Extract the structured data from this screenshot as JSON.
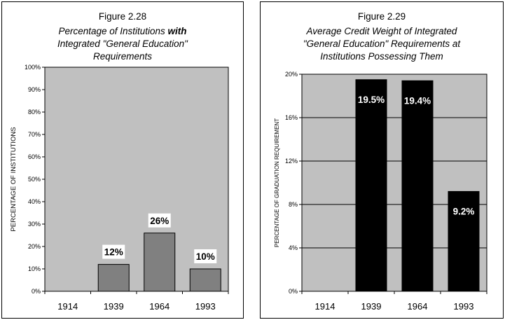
{
  "charts": [
    {
      "figure": "Figure 2.28",
      "title_line1_pre": "Percentage of Institutions ",
      "title_line1_bold": "with",
      "title_line2": "Integrated \"General Education\"",
      "title_line3": "Requirements"
    },
    {
      "figure": "Figure 2.29",
      "title_line1": "Average Credit Weight of Integrated",
      "title_line2": "\"General Education\" Requirements at",
      "title_line3": "Institutions Possessing Them"
    }
  ],
  "chart_data": [
    {
      "type": "bar",
      "title": "Percentage of Institutions with Integrated \"General Education\" Requirements",
      "xlabel": "",
      "ylabel": "PERCENTAGE OF INSTITUTIONS",
      "categories": [
        "1914",
        "1939",
        "1964",
        "1993"
      ],
      "values": [
        0,
        12,
        26,
        10
      ],
      "data_labels": [
        "",
        "12%",
        "26%",
        "10%"
      ],
      "ylim": [
        0,
        100
      ],
      "yticks": [
        "0%",
        "10%",
        "20%",
        "30%",
        "40%",
        "50%",
        "60%",
        "70%",
        "80%",
        "90%",
        "100%"
      ],
      "bar_color": "#808080",
      "plot_bg": "#c0c0c0",
      "grid": false
    },
    {
      "type": "bar",
      "title": "Average Credit Weight of Integrated \"General Education\" Requirements at Institutions Possessing Them",
      "xlabel": "",
      "ylabel": "PERCENTAGE OF GRADUATION REQUIREMENT",
      "categories": [
        "1914",
        "1939",
        "1964",
        "1993"
      ],
      "values": [
        0,
        19.5,
        19.4,
        9.2
      ],
      "data_labels": [
        "",
        "19.5%",
        "19.4%",
        "9.2%"
      ],
      "ylim": [
        0,
        20
      ],
      "yticks": [
        "0%",
        "4%",
        "8%",
        "12%",
        "16%",
        "20%"
      ],
      "bar_color": "#000000",
      "plot_bg": "#c0c0c0",
      "grid": true
    }
  ]
}
